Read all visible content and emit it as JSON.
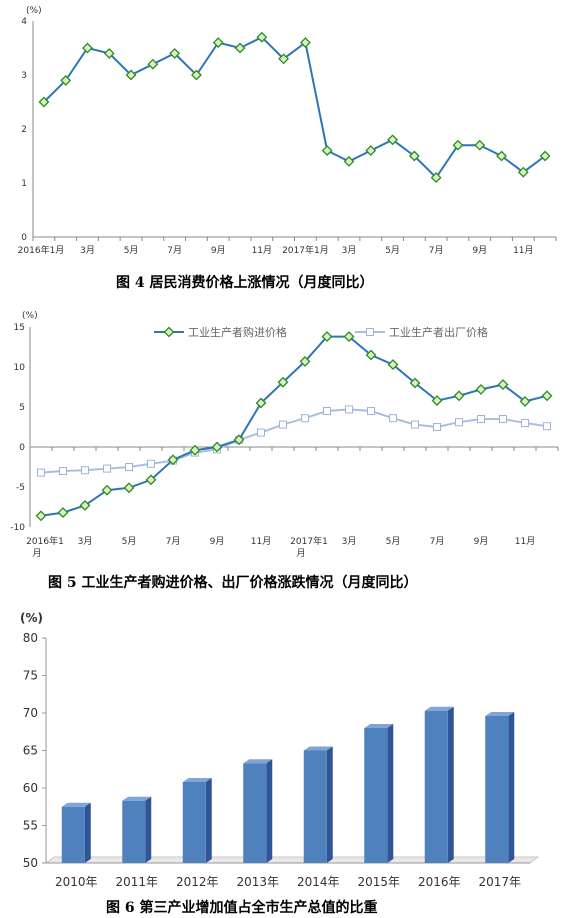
{
  "chart_data": [
    {
      "type": "line",
      "title": "",
      "caption": "图 4    居民消费价格上涨情况（月度同比）",
      "ylabel": "(%)",
      "ylim": [
        0,
        4
      ],
      "yticks": [
        "0",
        "1",
        "2",
        "3",
        "4"
      ],
      "xticks": [
        "2016年1月",
        "3月",
        "5月",
        "7月",
        "9月",
        "11月",
        "2017年1月",
        "3月",
        "5月",
        "7月",
        "9月",
        "11月"
      ],
      "series": [
        {
          "values": [
            2.5,
            2.9,
            3.5,
            3.4,
            3.0,
            3.2,
            3.4,
            3.0,
            3.6,
            3.5,
            3.7,
            3.3,
            3.6,
            1.6,
            1.4,
            1.6,
            1.8,
            1.5,
            1.1,
            1.7,
            1.7,
            1.5,
            1.2,
            1.5
          ],
          "color": "#2e75b6"
        }
      ]
    },
    {
      "type": "line",
      "title": "",
      "caption": "图 5    工业生产者购进价格、出厂价格涨跌情况（月度同比）",
      "ylabel": "(%)",
      "ylim": [
        -10,
        15
      ],
      "yticks": [
        "-10",
        "-5",
        "0",
        "5",
        "10",
        "15"
      ],
      "xticks": [
        "2016年1月",
        "3月",
        "5月",
        "7月",
        "9月",
        "11月",
        "2017年1月",
        "3月",
        "5月",
        "7月",
        "9月",
        "11月"
      ],
      "legend": "top",
      "series": [
        {
          "name": "工业生产者购进价格",
          "color": "#2e75b6",
          "values": [
            -8.6,
            -8.2,
            -7.3,
            -5.4,
            -5.1,
            -4.1,
            -1.6,
            -0.4,
            0.0,
            0.9,
            5.5,
            8.1,
            10.7,
            13.8,
            13.8,
            11.5,
            10.3,
            8.0,
            5.8,
            6.4,
            7.2,
            7.8,
            5.7,
            6.4
          ]
        },
        {
          "name": "工业生产者出厂价格",
          "color": "#a8c0e0",
          "values": [
            -3.2,
            -3.0,
            -2.9,
            -2.7,
            -2.5,
            -2.1,
            -1.7,
            -0.7,
            -0.3,
            0.9,
            1.8,
            2.8,
            3.6,
            4.5,
            4.7,
            4.5,
            3.6,
            2.8,
            2.5,
            3.1,
            3.5,
            3.5,
            3.0,
            2.6
          ]
        }
      ]
    },
    {
      "type": "bar",
      "title": "",
      "caption": "图 6    第三产业增加值占全市生产总值的比重",
      "ylabel": "(%)",
      "ylim": [
        50,
        80
      ],
      "yticks": [
        "50",
        "55",
        "60",
        "65",
        "70",
        "75",
        "80"
      ],
      "categories": [
        "2010年",
        "2011年",
        "2012年",
        "2013年",
        "2014年",
        "2015年",
        "2016年",
        "2017年"
      ],
      "values": [
        57.5,
        58.3,
        60.8,
        63.3,
        65.0,
        68.0,
        70.3,
        69.6
      ],
      "color": "#4f81bd"
    }
  ]
}
